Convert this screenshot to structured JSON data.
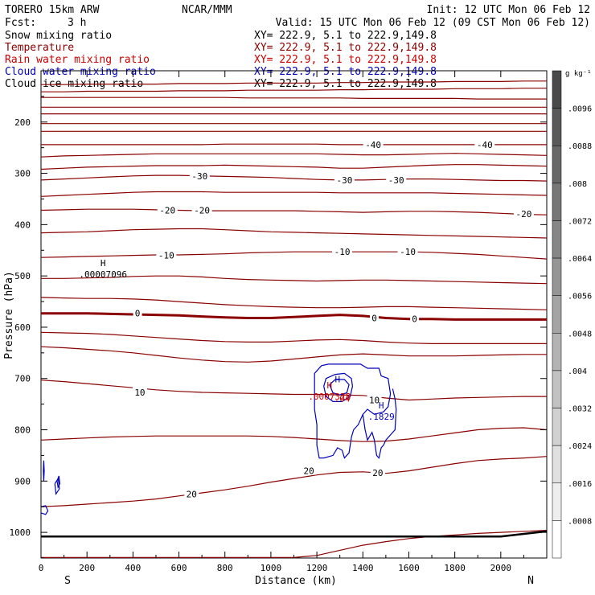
{
  "chart_data": {
    "type": "contour",
    "header": {
      "model": "TORERO  15km ARW",
      "center": "NCAR/MMM",
      "init": "Init: 12 UTC Mon 06 Feb 12",
      "fcst_label": "Fcst:",
      "fcst_value": "3 h",
      "valid": "Valid: 15 UTC Mon 06 Feb 12 (09 CST Mon 06 Feb 12)"
    },
    "fields": [
      {
        "name": "Snow mixing ratio",
        "color": "#000000",
        "xy": "XY= 222.9,  5.1 to 222.9,149.8"
      },
      {
        "name": "Temperature",
        "color": "#8b0000",
        "xy": "XY= 222.9,  5.1 to 222.9,149.8"
      },
      {
        "name": "Rain water mixing ratio",
        "color": "#cc0000",
        "xy": "XY= 222.9,  5.1 to 222.9,149.8"
      },
      {
        "name": "Cloud water mixing ratio",
        "color": "#0000bb",
        "xy": "XY= 222.9,  5.1 to 222.9,149.8"
      },
      {
        "name": "Cloud ice mixing ratio",
        "color": "#000000",
        "xy": "XY= 222.9,  5.1 to 222.9,149.8"
      }
    ],
    "xlabel": "Distance (km)",
    "ylabel": "Pressure (hPa)",
    "xlim": [
      0,
      2200
    ],
    "ylim": [
      1050,
      100
    ],
    "xticks": [
      0,
      200,
      400,
      600,
      800,
      1000,
      1200,
      1400,
      1600,
      1800,
      2000
    ],
    "yticks": [
      200,
      300,
      400,
      500,
      600,
      700,
      800,
      900,
      1000
    ],
    "x_endpoints": {
      "left": "S",
      "right": "N"
    },
    "colorbar": {
      "unit": "g kg⁻¹",
      "labels": [
        ".0096",
        ".0088",
        ".008",
        ".0072",
        ".0064",
        ".0056",
        ".0048",
        ".004",
        ".0032",
        ".0024",
        ".0016",
        ".0008"
      ],
      "fills": [
        "#4a4a4a",
        "#595959",
        "#686868",
        "#777777",
        "#868686",
        "#959595",
        "#a4a4a4",
        "#b3b3b3",
        "#c2c2c2",
        "#d1d1d1",
        "#e0e0e0",
        "#eeeeee"
      ]
    },
    "temperature_labels": [
      {
        "text": "-40",
        "x": 1445,
        "p": 244
      },
      {
        "text": "-40",
        "x": 1930,
        "p": 244
      },
      {
        "text": "-30",
        "x": 690,
        "p": 305
      },
      {
        "text": "-30",
        "x": 1320,
        "p": 313
      },
      {
        "text": "-30",
        "x": 1545,
        "p": 313
      },
      {
        "text": "-20",
        "x": 550,
        "p": 372
      },
      {
        "text": "-20",
        "x": 700,
        "p": 372
      },
      {
        "text": "-20",
        "x": 2100,
        "p": 379
      },
      {
        "text": "-10",
        "x": 545,
        "p": 460
      },
      {
        "text": "-10",
        "x": 1310,
        "p": 453
      },
      {
        "text": "-10",
        "x": 1595,
        "p": 453
      },
      {
        "text": "0",
        "x": 420,
        "p": 573
      },
      {
        "text": "0",
        "x": 1450,
        "p": 582
      },
      {
        "text": "0",
        "x": 1625,
        "p": 584
      },
      {
        "text": "10",
        "x": 430,
        "p": 727
      },
      {
        "text": "10",
        "x": 1450,
        "p": 742
      },
      {
        "text": "20",
        "x": 1165,
        "p": 880
      },
      {
        "text": "20",
        "x": 1465,
        "p": 884
      },
      {
        "text": "20",
        "x": 655,
        "p": 925
      }
    ],
    "annotations": [
      {
        "marker": "H",
        "value": ".00007096",
        "x": 270,
        "p": 500,
        "color": "#000000"
      },
      {
        "marker": "H",
        "value": ".0007328",
        "x": 1255,
        "p": 738,
        "color": "#cc0000"
      },
      {
        "marker": "H",
        "value": "",
        "x": 1290,
        "p": 726,
        "color": "#0000bb"
      },
      {
        "marker": "H",
        "value": ".1829",
        "x": 1480,
        "p": 777,
        "color": "#0000bb"
      },
      {
        "marker": "",
        "value": ".04",
        "x": 1310,
        "p": 742,
        "color": "#cc0000"
      }
    ]
  }
}
